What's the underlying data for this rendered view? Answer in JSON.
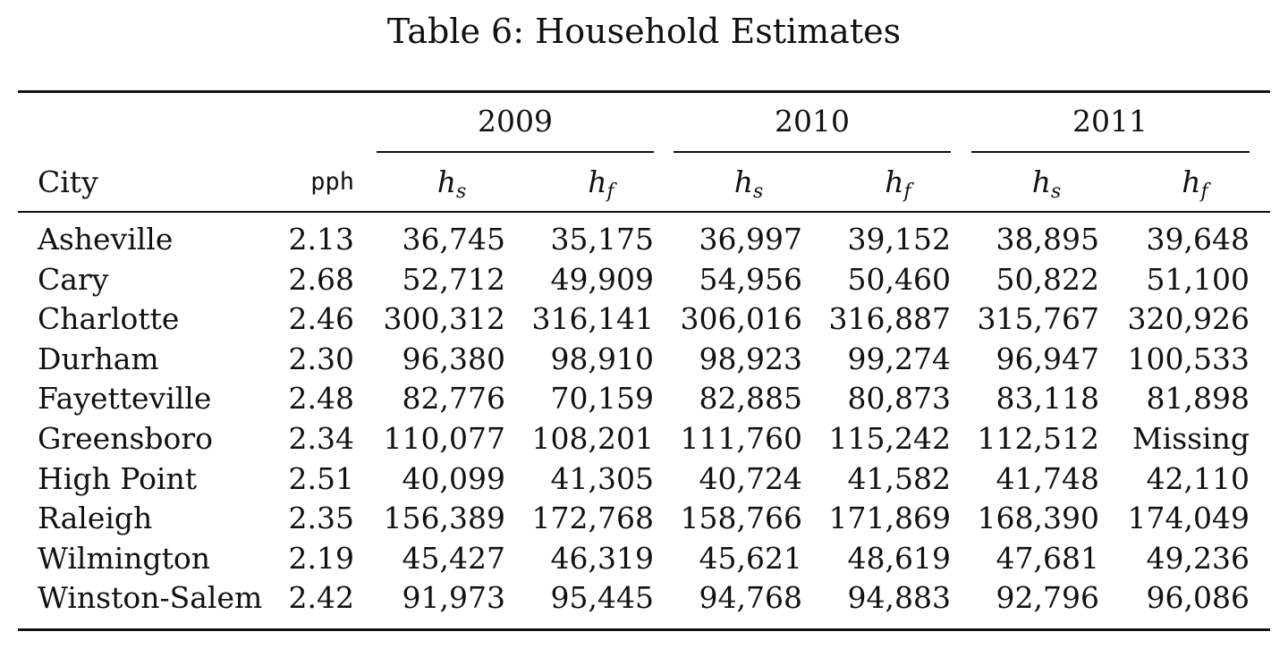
{
  "table": {
    "caption": "Table 6: Household Estimates",
    "header": {
      "city": "City",
      "pph": "pph",
      "years": [
        "2009",
        "2010",
        "2011"
      ],
      "sub_columns": [
        {
          "base": "h",
          "sub": "s"
        },
        {
          "base": "h",
          "sub": "f"
        },
        {
          "base": "h",
          "sub": "s"
        },
        {
          "base": "h",
          "sub": "f"
        },
        {
          "base": "h",
          "sub": "s"
        },
        {
          "base": "h",
          "sub": "f"
        }
      ]
    },
    "rows": [
      {
        "city": "Asheville",
        "pph": "2.13",
        "values": [
          "36,745",
          "35,175",
          "36,997",
          "39,152",
          "38,895",
          "39,648"
        ]
      },
      {
        "city": "Cary",
        "pph": "2.68",
        "values": [
          "52,712",
          "49,909",
          "54,956",
          "50,460",
          "50,822",
          "51,100"
        ]
      },
      {
        "city": "Charlotte",
        "pph": "2.46",
        "values": [
          "300,312",
          "316,141",
          "306,016",
          "316,887",
          "315,767",
          "320,926"
        ]
      },
      {
        "city": "Durham",
        "pph": "2.30",
        "values": [
          "96,380",
          "98,910",
          "98,923",
          "99,274",
          "96,947",
          "100,533"
        ]
      },
      {
        "city": "Fayetteville",
        "pph": "2.48",
        "values": [
          "82,776",
          "70,159",
          "82,885",
          "80,873",
          "83,118",
          "81,898"
        ]
      },
      {
        "city": "Greensboro",
        "pph": "2.34",
        "values": [
          "110,077",
          "108,201",
          "111,760",
          "115,242",
          "112,512",
          "Missing"
        ]
      },
      {
        "city": "High Point",
        "pph": "2.51",
        "values": [
          "40,099",
          "41,305",
          "40,724",
          "41,582",
          "41,748",
          "42,110"
        ]
      },
      {
        "city": "Raleigh",
        "pph": "2.35",
        "values": [
          "156,389",
          "172,768",
          "158,766",
          "171,869",
          "168,390",
          "174,049"
        ]
      },
      {
        "city": "Wilmington",
        "pph": "2.19",
        "values": [
          "45,427",
          "46,319",
          "45,621",
          "48,619",
          "47,681",
          "49,236"
        ]
      },
      {
        "city": "Winston-Salem",
        "pph": "2.42",
        "values": [
          "91,973",
          "95,445",
          "94,768",
          "94,883",
          "92,796",
          "96,086"
        ]
      }
    ]
  }
}
